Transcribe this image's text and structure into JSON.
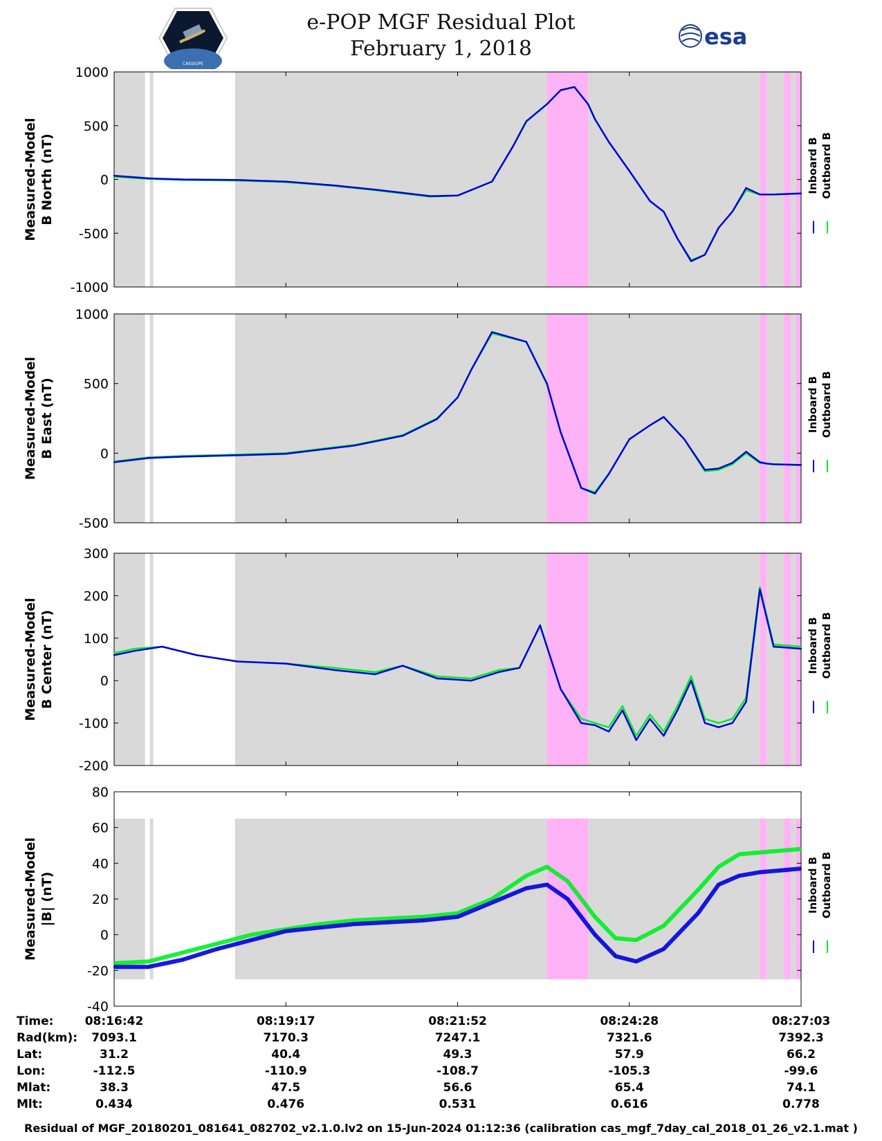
{
  "header": {
    "title": "e-POP MGF Residual Plot",
    "date": "February 1, 2018",
    "left_logo_text": "CASSIOPE",
    "right_logo_text": "esa"
  },
  "colors": {
    "inboard": "#0000dd",
    "outboard": "#00ee22",
    "background_band": "#d9d9d9",
    "magenta_band": "#ffb3f7"
  },
  "legend": {
    "inboard": "Inboard B",
    "outboard": "Outboard B"
  },
  "chart_data": [
    {
      "type": "line",
      "title": "",
      "ylabel": "Measured-Model\nB North (nT)",
      "ylabel_lines": [
        "Measured-Model",
        "B North (nT)"
      ],
      "ylim": [
        -1000,
        1000
      ],
      "yticks": [
        -1000,
        -500,
        0,
        500,
        1000
      ],
      "x": [
        0,
        0.05,
        0.1,
        0.18,
        0.25,
        0.32,
        0.38,
        0.42,
        0.46,
        0.5,
        0.55,
        0.58,
        0.6,
        0.63,
        0.65,
        0.67,
        0.69,
        0.7,
        0.72,
        0.75,
        0.78,
        0.8,
        0.82,
        0.84,
        0.86,
        0.88,
        0.9,
        0.92,
        0.94,
        0.96,
        1.0
      ],
      "series": [
        {
          "name": "Outboard B",
          "values": [
            25,
            5,
            -5,
            -10,
            -25,
            -60,
            -100,
            -130,
            -160,
            -150,
            -20,
            300,
            540,
            700,
            830,
            860,
            700,
            560,
            350,
            80,
            -200,
            -300,
            -550,
            -750,
            -700,
            -450,
            -300,
            -100,
            -140,
            -140,
            -130
          ]
        },
        {
          "name": "Inboard B",
          "values": [
            35,
            10,
            0,
            -5,
            -20,
            -55,
            -95,
            -125,
            -155,
            -150,
            -20,
            300,
            540,
            700,
            830,
            860,
            700,
            560,
            350,
            80,
            -200,
            -300,
            -550,
            -760,
            -700,
            -450,
            -300,
            -80,
            -140,
            -140,
            -130
          ]
        }
      ]
    },
    {
      "type": "line",
      "title": "",
      "ylabel_lines": [
        "Measured-Model",
        "B East (nT)"
      ],
      "ylim": [
        -500,
        1000
      ],
      "yticks": [
        -500,
        0,
        500,
        1000
      ],
      "x": [
        0,
        0.05,
        0.1,
        0.18,
        0.25,
        0.3,
        0.35,
        0.42,
        0.47,
        0.5,
        0.52,
        0.55,
        0.6,
        0.63,
        0.65,
        0.68,
        0.7,
        0.72,
        0.75,
        0.78,
        0.8,
        0.83,
        0.86,
        0.88,
        0.9,
        0.92,
        0.94,
        0.95,
        0.96,
        1.0
      ],
      "series": [
        {
          "name": "Outboard B",
          "values": [
            -60,
            -30,
            -20,
            -10,
            0,
            30,
            60,
            130,
            250,
            400,
            600,
            860,
            800,
            500,
            150,
            -250,
            -280,
            -150,
            100,
            200,
            260,
            100,
            -130,
            -120,
            -80,
            0,
            -70,
            -75,
            -80,
            -85
          ]
        },
        {
          "name": "Inboard B",
          "values": [
            -65,
            -35,
            -25,
            -15,
            -5,
            25,
            55,
            125,
            245,
            400,
            600,
            870,
            800,
            500,
            150,
            -250,
            -290,
            -150,
            100,
            200,
            260,
            100,
            -120,
            -110,
            -70,
            10,
            -65,
            -75,
            -80,
            -85
          ]
        }
      ]
    },
    {
      "type": "line",
      "title": "",
      "ylabel_lines": [
        "Measured-Model",
        "B Center (nT)"
      ],
      "ylim": [
        -200,
        300
      ],
      "yticks": [
        -200,
        -100,
        0,
        100,
        200,
        300
      ],
      "x": [
        0,
        0.03,
        0.07,
        0.12,
        0.18,
        0.25,
        0.32,
        0.38,
        0.42,
        0.47,
        0.52,
        0.56,
        0.59,
        0.62,
        0.65,
        0.68,
        0.7,
        0.72,
        0.74,
        0.76,
        0.78,
        0.8,
        0.82,
        0.84,
        0.86,
        0.88,
        0.9,
        0.92,
        0.94,
        0.96,
        1.0
      ],
      "series": [
        {
          "name": "Outboard B",
          "values": [
            65,
            75,
            80,
            60,
            45,
            40,
            30,
            20,
            35,
            10,
            5,
            25,
            30,
            130,
            -20,
            -90,
            -100,
            -110,
            -60,
            -130,
            -80,
            -120,
            -60,
            10,
            -90,
            -100,
            -90,
            -40,
            220,
            85,
            80
          ]
        },
        {
          "name": "Inboard B",
          "values": [
            60,
            70,
            80,
            60,
            45,
            40,
            25,
            15,
            35,
            5,
            0,
            20,
            30,
            130,
            -20,
            -100,
            -105,
            -120,
            -70,
            -140,
            -90,
            -130,
            -70,
            0,
            -100,
            -110,
            -100,
            -50,
            215,
            80,
            75
          ]
        }
      ]
    },
    {
      "type": "line",
      "title": "",
      "ylabel_lines": [
        "Measured-Model",
        "|B| (nT)"
      ],
      "ylim": [
        -40,
        80
      ],
      "yticks": [
        -40,
        -20,
        0,
        20,
        40,
        60,
        80
      ],
      "x": [
        0,
        0.05,
        0.1,
        0.15,
        0.2,
        0.25,
        0.3,
        0.35,
        0.4,
        0.45,
        0.5,
        0.55,
        0.6,
        0.63,
        0.66,
        0.7,
        0.73,
        0.76,
        0.8,
        0.85,
        0.88,
        0.91,
        0.94,
        0.97,
        1.0
      ],
      "series": [
        {
          "name": "Outboard B",
          "values": [
            -16,
            -15,
            -10,
            -5,
            0,
            3,
            6,
            8,
            9,
            10,
            12,
            20,
            33,
            38,
            30,
            10,
            -2,
            -3,
            5,
            25,
            38,
            45,
            46,
            47,
            48
          ]
        },
        {
          "name": "Inboard B",
          "values": [
            -18,
            -18,
            -14,
            -8,
            -3,
            2,
            4,
            6,
            7,
            8,
            10,
            18,
            26,
            28,
            20,
            0,
            -12,
            -15,
            -8,
            12,
            28,
            33,
            35,
            36,
            37
          ]
        }
      ]
    }
  ],
  "time_table": {
    "row_labels": [
      "Time:",
      "Rad(km):",
      "Lat:",
      "Lon:",
      "Mlat:",
      "Mlt:"
    ],
    "columns": [
      {
        "time": "08:16:42",
        "rad": "7093.1",
        "lat": "31.2",
        "lon": "-112.5",
        "mlat": "38.3",
        "mlt": "0.434"
      },
      {
        "time": "08:19:17",
        "rad": "7170.3",
        "lat": "40.4",
        "lon": "-110.9",
        "mlat": "47.5",
        "mlt": "0.476"
      },
      {
        "time": "08:21:52",
        "rad": "7247.1",
        "lat": "49.3",
        "lon": "-108.7",
        "mlat": "56.6",
        "mlt": "0.531"
      },
      {
        "time": "08:24:28",
        "rad": "7321.6",
        "lat": "57.9",
        "lon": "-105.3",
        "mlat": "65.4",
        "mlt": "0.616"
      },
      {
        "time": "08:27:03",
        "rad": "7392.3",
        "lat": "66.2",
        "lon": "-99.6",
        "mlat": "74.1",
        "mlt": "0.778"
      }
    ]
  },
  "footer": "Residual of MGF_20180201_081641_082702_v2.1.0.lv2 on 15-Jun-2024 01:12:36 (calibration cas_mgf_7day_cal_2018_01_26_v2.1.mat )"
}
